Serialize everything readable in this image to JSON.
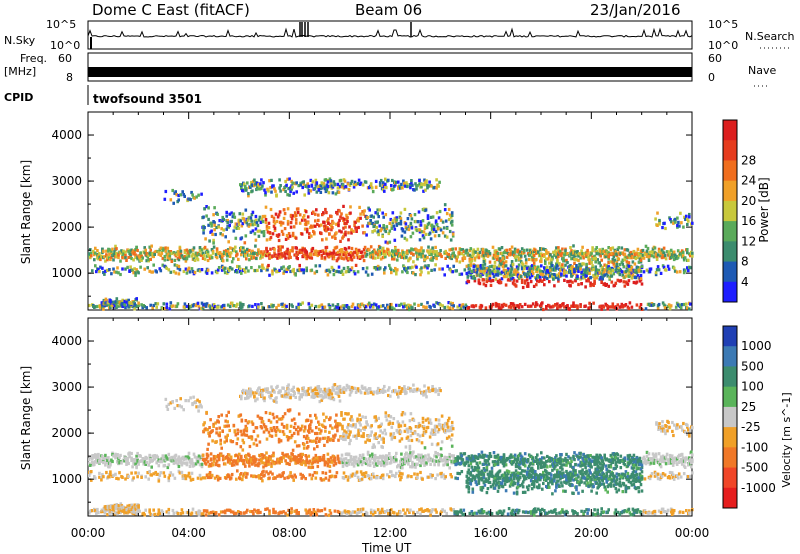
{
  "header": {
    "station": "Dome C East (fitACF)",
    "beam": "Beam 06",
    "date": "23/Jan/2016"
  },
  "top_panels": {
    "nsky_label": "N.Sky",
    "nsky_ticks": [
      "10^5",
      "10^0"
    ],
    "nsearch_label": "N.Search",
    "nsearch_ticks": [
      "10^5",
      "10^0"
    ],
    "freq_label_1": "Freq.",
    "freq_label_2": "[MHz]",
    "freq_ticks": [
      "60",
      "8"
    ],
    "nave_label": "Nave",
    "nave_ticks": [
      "60",
      "0"
    ],
    "cpid_label": "CPID",
    "cpid_value": "twofsound 3501"
  },
  "chart_data": [
    {
      "type": "heatmap",
      "name": "power",
      "ylabel": "Slant Range [km]",
      "xlabel": "",
      "ylim": [
        200,
        4500
      ],
      "yticks": [
        "1000",
        "2000",
        "3000",
        "4000"
      ],
      "colorbar_label": "Power [dB]",
      "colorbar_ticks": [
        "4",
        "8",
        "12",
        "16",
        "20",
        "24",
        "28"
      ],
      "colorbar_colors": [
        "#1e1eff",
        "#1e5ab4",
        "#3c8c6e",
        "#5aaa5a",
        "#c8c83c",
        "#f0a028",
        "#f06e1e",
        "#e63c1e",
        "#dc1e1e"
      ]
    },
    {
      "type": "heatmap",
      "name": "velocity",
      "ylabel": "Slant Range [km]",
      "xlabel": "Time UT",
      "ylim": [
        200,
        4500
      ],
      "yticks": [
        "1000",
        "2000",
        "3000",
        "4000"
      ],
      "xticks": [
        "00:00",
        "04:00",
        "08:00",
        "12:00",
        "16:00",
        "20:00",
        "00:00"
      ],
      "colorbar_label": "Velocity [m s^-1]",
      "colorbar_ticks": [
        "1000",
        "500",
        "100",
        "25",
        "-25",
        "-100",
        "-500",
        "-1000"
      ],
      "colorbar_colors": [
        "#2040b4",
        "#3c7ab4",
        "#3c8c6e",
        "#5ab45a",
        "#c8c8c8",
        "#f0a028",
        "#f07828",
        "#f04628",
        "#e61e1e"
      ]
    }
  ]
}
